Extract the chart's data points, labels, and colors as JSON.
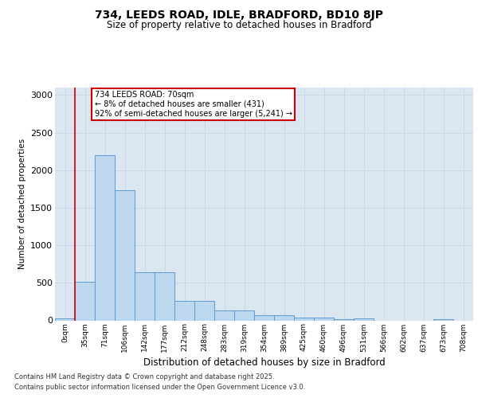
{
  "title_line1": "734, LEEDS ROAD, IDLE, BRADFORD, BD10 8JP",
  "title_line2": "Size of property relative to detached houses in Bradford",
  "xlabel": "Distribution of detached houses by size in Bradford",
  "ylabel": "Number of detached properties",
  "footnote1": "Contains HM Land Registry data © Crown copyright and database right 2025.",
  "footnote2": "Contains public sector information licensed under the Open Government Licence v3.0.",
  "annotation_title": "734 LEEDS ROAD: 70sqm",
  "annotation_line2": "← 8% of detached houses are smaller (431)",
  "annotation_line3": "92% of semi-detached houses are larger (5,241) →",
  "bar_values": [
    30,
    510,
    2200,
    1730,
    640,
    640,
    260,
    260,
    135,
    135,
    70,
    70,
    35,
    35,
    20,
    25,
    0,
    0,
    0,
    20,
    0
  ],
  "bar_labels": [
    "0sqm",
    "35sqm",
    "71sqm",
    "106sqm",
    "142sqm",
    "177sqm",
    "212sqm",
    "248sqm",
    "283sqm",
    "319sqm",
    "354sqm",
    "389sqm",
    "425sqm",
    "460sqm",
    "496sqm",
    "531sqm",
    "566sqm",
    "602sqm",
    "637sqm",
    "673sqm",
    "708sqm"
  ],
  "bar_color": "#bdd7ee",
  "bar_edge_color": "#5b9bd5",
  "grid_color": "#c8d4e8",
  "background_color": "#dce6f1",
  "annotation_box_color": "#cc0000",
  "vline_color": "#cc0000",
  "vline_x_idx": 1,
  "ylim": [
    0,
    3100
  ],
  "yticks": [
    0,
    500,
    1000,
    1500,
    2000,
    2500,
    3000
  ],
  "figsize": [
    6.0,
    5.0
  ],
  "dpi": 100
}
